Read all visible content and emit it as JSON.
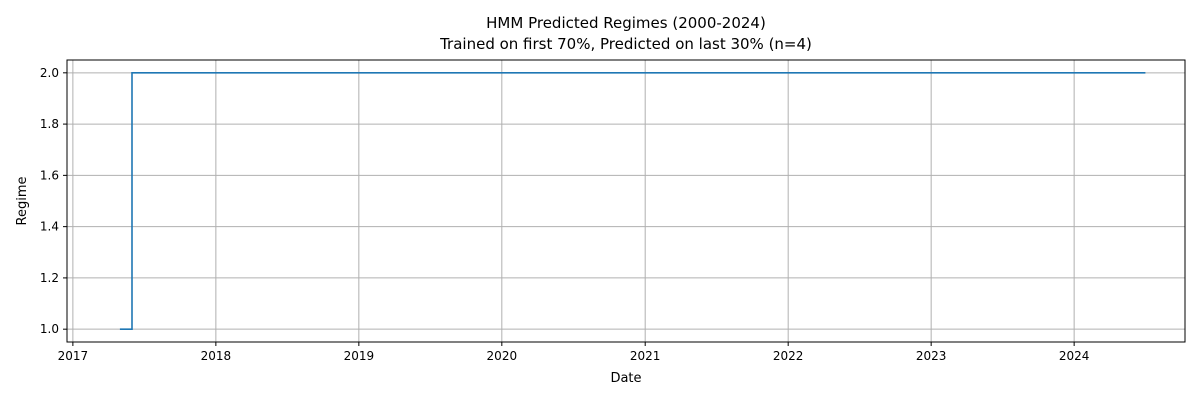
{
  "chart_data": {
    "type": "line",
    "title": "HMM Predicted Regimes (2000-2024)",
    "subtitle": "Trained on first 70%, Predicted on last 30% (n=4)",
    "xlabel": "Date",
    "ylabel": "Regime",
    "xlim": [
      "2016-12-17",
      "2024-10-10"
    ],
    "ylim": [
      0.95,
      2.05
    ],
    "x_ticks": [
      "2017",
      "2018",
      "2019",
      "2020",
      "2021",
      "2022",
      "2023",
      "2024"
    ],
    "y_ticks": [
      "1.0",
      "1.2",
      "1.4",
      "1.6",
      "1.8",
      "2.0"
    ],
    "grid": true,
    "line_style": "step",
    "series": [
      {
        "color": "#1f77b4",
        "points": [
          {
            "x": "2017-05-01",
            "y": 1
          },
          {
            "x": "2017-06-01",
            "y": 1
          },
          {
            "x": "2017-06-01",
            "y": 2
          },
          {
            "x": "2024-07-01",
            "y": 2
          }
        ]
      }
    ]
  }
}
